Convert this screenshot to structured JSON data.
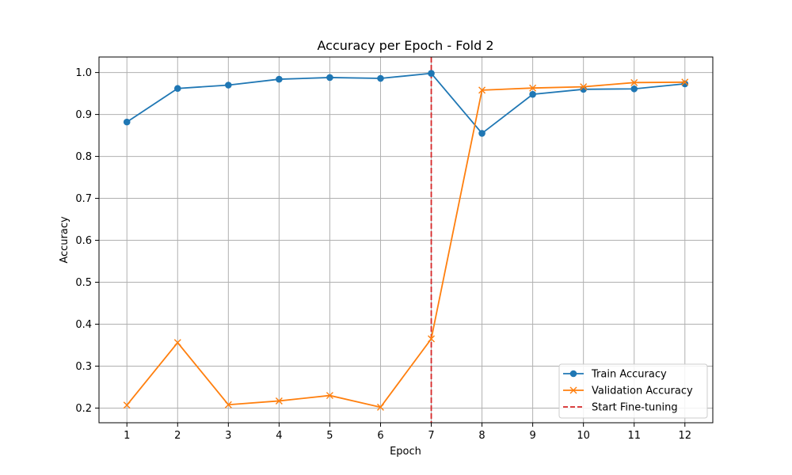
{
  "chart_data": {
    "type": "line",
    "title": "Accuracy per Epoch - Fold 2",
    "xlabel": "Epoch",
    "ylabel": "Accuracy",
    "x": [
      1,
      2,
      3,
      4,
      5,
      6,
      7,
      8,
      9,
      10,
      11,
      12
    ],
    "xlim": [
      0.45,
      12.55
    ],
    "ylim": [
      0.165,
      1.037
    ],
    "yticks": [
      0.2,
      0.3,
      0.4,
      0.5,
      0.6,
      0.7,
      0.8,
      0.9,
      1.0
    ],
    "ytick_labels": [
      "0.2",
      "0.3",
      "0.4",
      "0.5",
      "0.6",
      "0.7",
      "0.8",
      "0.9",
      "1.0"
    ],
    "xtick_labels": [
      "1",
      "2",
      "3",
      "4",
      "5",
      "6",
      "7",
      "8",
      "9",
      "10",
      "11",
      "12"
    ],
    "grid": true,
    "legend_position": "lower-right",
    "series": [
      {
        "name": "Train Accuracy",
        "color": "#1f77b4",
        "marker": "circle",
        "values": [
          0.882,
          0.962,
          0.97,
          0.984,
          0.988,
          0.986,
          0.998,
          0.855,
          0.948,
          0.96,
          0.961,
          0.973
        ]
      },
      {
        "name": "Validation Accuracy",
        "color": "#ff7f0e",
        "marker": "x",
        "values": [
          0.207,
          0.356,
          0.208,
          0.217,
          0.23,
          0.202,
          0.365,
          0.958,
          0.963,
          0.966,
          0.976,
          0.977
        ]
      }
    ],
    "reference_lines": [
      {
        "name": "Start Fine-tuning",
        "x": 7,
        "color": "#d62728",
        "style": "dashed"
      }
    ]
  }
}
